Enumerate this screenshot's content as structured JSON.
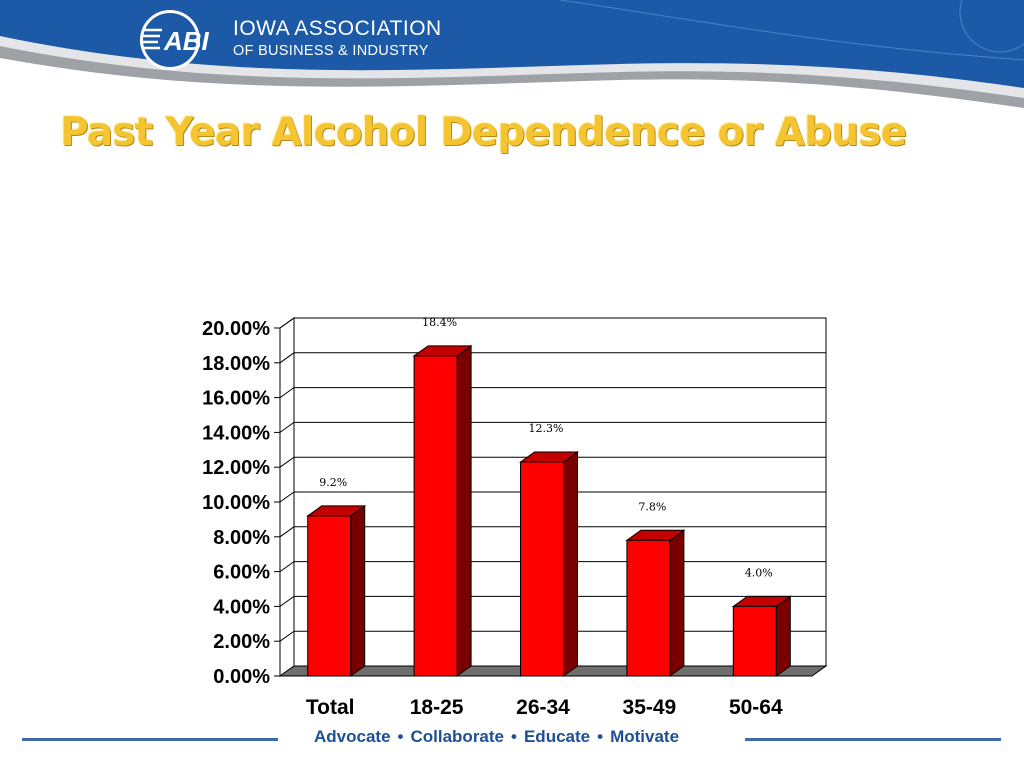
{
  "header": {
    "logo_text": "ABI",
    "org_line1": "IOWA ASSOCIATION",
    "org_line2": "OF BUSINESS & INDUSTRY"
  },
  "slide_title": "Past Year Alcohol Dependence or Abuse",
  "chart_data": {
    "type": "bar",
    "title": "Past Year Alcohol Dependence or Abuse",
    "xlabel": "",
    "ylabel": "",
    "categories": [
      "Total",
      "18-25",
      "26-34",
      "35-49",
      "50-64"
    ],
    "values": [
      9.2,
      18.4,
      12.3,
      7.8,
      4.0
    ],
    "data_labels": [
      "9.2%",
      "18.4%",
      "12.3%",
      "7.8%",
      "4.0%"
    ],
    "ylim": [
      0,
      20
    ],
    "yticks": [
      "0.00%",
      "2.00%",
      "4.00%",
      "6.00%",
      "8.00%",
      "10.00%",
      "12.00%",
      "14.00%",
      "16.00%",
      "18.00%",
      "20.00%"
    ],
    "grid": true,
    "bar_color": "#ff0000",
    "bar_side_color": "#7a0000",
    "bar_top_color": "#c40000",
    "floor_color": "#6e6e6e"
  },
  "footer": {
    "tagline": [
      "Advocate",
      "Collaborate",
      "Educate",
      "Motivate"
    ],
    "separator": "•"
  },
  "colors": {
    "header_blue": "#1c5aa8",
    "title_gold": "#f5c531",
    "tagline_blue": "#1f4f95"
  }
}
